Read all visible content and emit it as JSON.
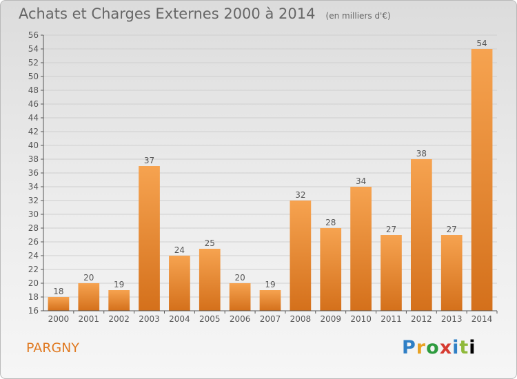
{
  "header": {
    "title": "Achats et Charges Externes 2000 à 2014",
    "subtitle": "(en milliers d'€)"
  },
  "footer": {
    "town": "PARGNY",
    "logo_letters": [
      "P",
      "r",
      "o",
      "x",
      "i",
      "t",
      "i"
    ]
  },
  "colors": {
    "bar_light": "#f6a350",
    "bar_dark": "#d4701b",
    "axis": "#555555",
    "grid": "#cfcfcf",
    "text": "#555555"
  },
  "chart_data": {
    "type": "bar",
    "title": "Achats et Charges Externes 2000 à 2014",
    "subtitle": "(en milliers d'€)",
    "xlabel": "",
    "ylabel": "",
    "categories": [
      "2000",
      "2001",
      "2002",
      "2003",
      "2004",
      "2005",
      "2006",
      "2007",
      "2008",
      "2009",
      "2010",
      "2011",
      "2012",
      "2013",
      "2014"
    ],
    "values": [
      18,
      20,
      19,
      37,
      24,
      25,
      20,
      19,
      32,
      28,
      34,
      27,
      38,
      27,
      54
    ],
    "ylim": [
      16,
      56
    ],
    "ytick_step": 2,
    "grid": true,
    "data_labels": true
  }
}
